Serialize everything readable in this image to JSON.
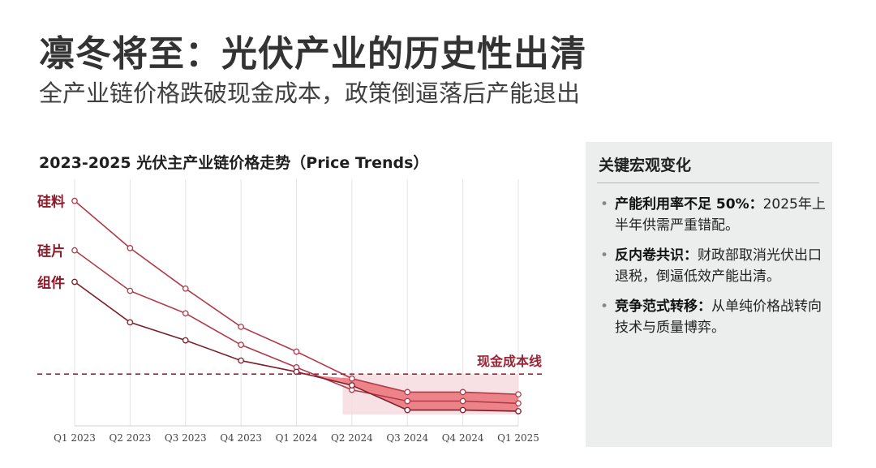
{
  "page": {
    "title": "凛冬将至：光伏产业的历史性出清",
    "subtitle": "全产业链价格跌破现金成本，政策倒逼落后产能退出"
  },
  "chart_title": "2023-2025 光伏主产业链价格走势（Price Trends）",
  "chart_data": {
    "type": "line",
    "title": "2023-2025 光伏主产业链价格走势（Price Trends）",
    "categories": [
      "Q1 2023",
      "Q2 2023",
      "Q3 2023",
      "Q4 2023",
      "Q1 2024",
      "Q2 2024",
      "Q3 2024",
      "Q4 2024",
      "Q1 2025"
    ],
    "series": [
      {
        "name": "硅料",
        "values": [
          94,
          73,
          55,
          38,
          27,
          15,
          9,
          9,
          8
        ],
        "color": "#b23a48"
      },
      {
        "name": "硅片",
        "values": [
          72,
          54,
          44,
          30,
          20,
          10,
          5,
          5,
          4
        ],
        "color": "#b23a48"
      },
      {
        "name": "组件",
        "values": [
          58,
          40,
          32,
          23,
          18,
          12,
          1,
          1,
          0.5
        ],
        "color": "#7a1f2b"
      }
    ],
    "reference_line": {
      "label": "现金成本线",
      "value": 17,
      "color": "#9b2335"
    },
    "shaded_below_reference": true,
    "ylim": [
      -6,
      100
    ],
    "xlabel": "",
    "ylabel": "",
    "grid": "vertical",
    "legend": "series labels at left of lines"
  },
  "panel": {
    "title": "关键宏观变化",
    "items": [
      {
        "label": "产能利用率不足 50%：",
        "text": "2025年上半年供需严重错配。"
      },
      {
        "label": "反内卷共识：",
        "text": "财政部取消光伏出口退税，倒逼低效产能出清。"
      },
      {
        "label": "竞争范式转移：",
        "text": "从单纯价格战转向技术与质量博弈。"
      }
    ]
  }
}
